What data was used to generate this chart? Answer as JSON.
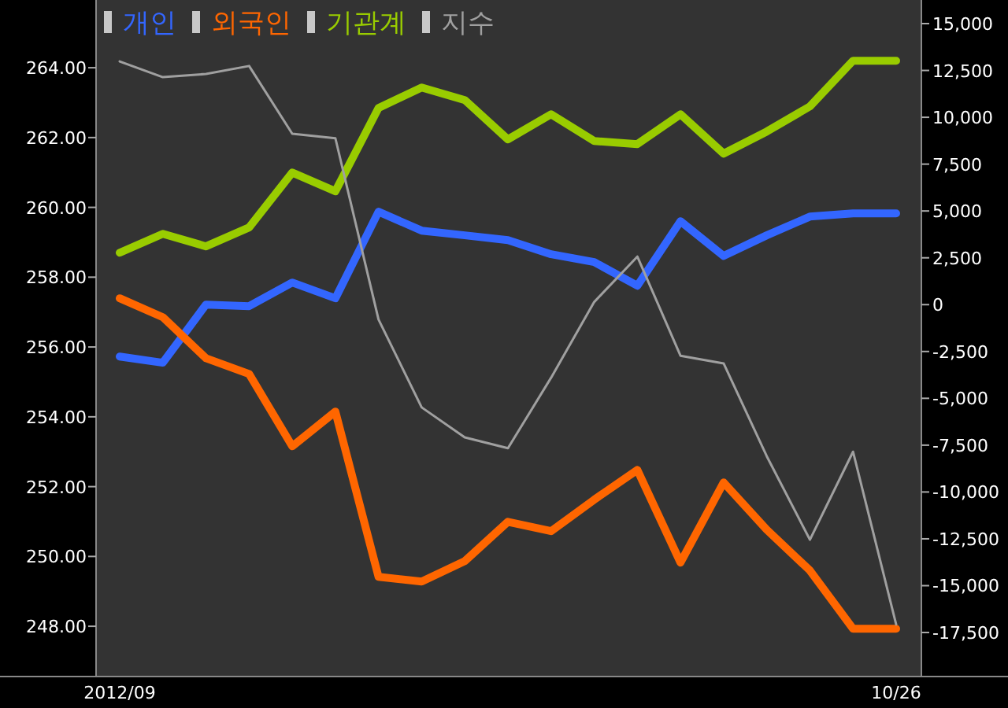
{
  "chart_data": {
    "type": "line",
    "categories": [
      "2012/09",
      null,
      null,
      null,
      null,
      null,
      null,
      null,
      null,
      null,
      null,
      null,
      null,
      null,
      null,
      null,
      null,
      null,
      "10/26"
    ],
    "series": [
      {
        "name": "개인",
        "color": "#3366ff",
        "axis": "y2",
        "values": [
          -2770,
          -3100,
          0,
          -80,
          1180,
          340,
          4960,
          3950,
          3700,
          3440,
          2690,
          2270,
          1010,
          4450,
          2600,
          3700,
          4700,
          4870,
          4870
        ]
      },
      {
        "name": "외국인",
        "color": "#ff6600",
        "axis": "y2",
        "values": [
          340,
          -670,
          -2860,
          -3700,
          -7560,
          -5710,
          -14530,
          -14780,
          -13690,
          -11590,
          -12090,
          -10410,
          -8820,
          -13770,
          -9490,
          -12010,
          -14190,
          -17300,
          -17300
        ]
      },
      {
        "name": "기관계",
        "color": "#99cc00",
        "axis": "y2",
        "values": [
          2770,
          3780,
          3110,
          4120,
          7050,
          6050,
          10500,
          11590,
          10920,
          8820,
          10160,
          8730,
          8570,
          10160,
          8060,
          9240,
          10580,
          13020,
          13020
        ]
      },
      {
        "name": "지수",
        "color": "#a0a0a0",
        "values": [
          264.18,
          263.73,
          263.82,
          264.05,
          262.11,
          261.98,
          256.79,
          254.27,
          253.41,
          253.1,
          255.12,
          257.29,
          258.59,
          255.75,
          255.53,
          252.87,
          250.48,
          253.0,
          248.05
        ]
      }
    ],
    "ylim": [
      246.56,
      265.94
    ],
    "yticks": [
      {
        "value": 248,
        "label": "248.00"
      },
      {
        "value": 250,
        "label": "250.00"
      },
      {
        "value": 252,
        "label": "252.00"
      },
      {
        "value": 254,
        "label": "254.00"
      },
      {
        "value": 256,
        "label": "256.00"
      },
      {
        "value": 258,
        "label": "258.00"
      },
      {
        "value": 260,
        "label": "260.00"
      },
      {
        "value": 262,
        "label": "262.00"
      },
      {
        "value": 264,
        "label": "264.00"
      }
    ],
    "y2lim": [
      -19850,
      16260
    ],
    "y2ticks": [
      {
        "value": -17500,
        "label": "-17,500"
      },
      {
        "value": -15000,
        "label": "-15,000"
      },
      {
        "value": -12500,
        "label": "-12,500"
      },
      {
        "value": -10000,
        "label": "-10,000"
      },
      {
        "value": -7500,
        "label": "-7,500"
      },
      {
        "value": -5000,
        "label": "-5,000"
      },
      {
        "value": -2500,
        "label": "-2,500"
      },
      0,
      {
        "value": 2500,
        "label": "2,500"
      },
      {
        "value": 5000,
        "label": "5,000"
      },
      {
        "value": 7500,
        "label": "7,500"
      },
      {
        "value": 10000,
        "label": "10,000"
      },
      {
        "value": 12500,
        "label": "12,500"
      },
      {
        "value": 15000,
        "label": "15,000"
      }
    ],
    "legend": "top left",
    "grid": false,
    "marker": "none"
  }
}
